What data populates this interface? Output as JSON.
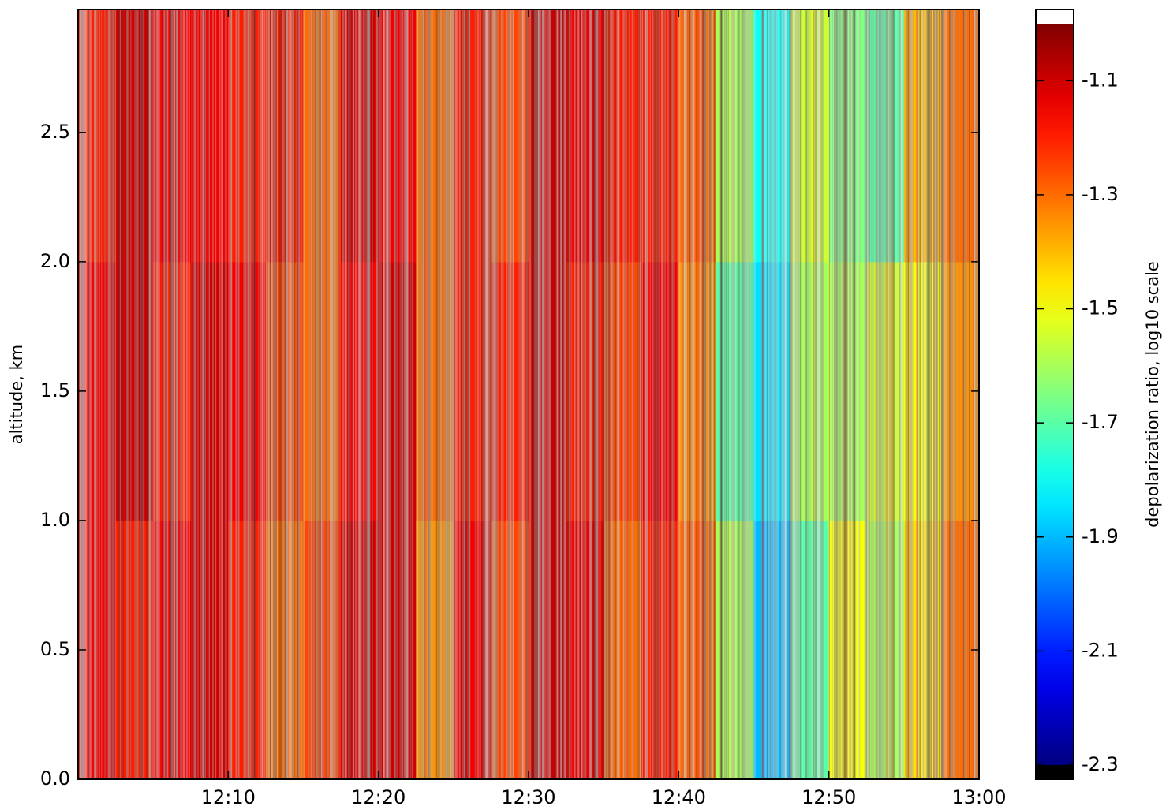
{
  "chart_data": {
    "type": "heatmap",
    "y_label": "altitude, km",
    "colorbar_label": "depolarization ratio, log10 scale",
    "colormap": "jet",
    "x": [
      720,
      722.5,
      725,
      727.5,
      730,
      732.5,
      735,
      737.5,
      740,
      742.5,
      745,
      747.5,
      750,
      752.5,
      755,
      757.5,
      760,
      762.5,
      765,
      767.5,
      770,
      772.5,
      775,
      777.5,
      780
    ],
    "y": [
      0,
      1,
      2,
      2.975
    ],
    "values": [
      [
        -1.15,
        -1.2,
        -1.15,
        -1.1,
        -1.2,
        -1.3,
        -1.25,
        -1.1,
        -1.1,
        -1.35,
        -1.15,
        -1.25,
        -1.1,
        -1.15,
        -1.3,
        -1.2,
        -1.3,
        -1.6,
        -1.9,
        -1.7,
        -1.5,
        -1.6,
        -1.45,
        -1.3
      ],
      [
        -1.15,
        -1.1,
        -1.2,
        -1.1,
        -1.15,
        -1.25,
        -1.3,
        -1.15,
        -1.1,
        -1.3,
        -1.2,
        -1.2,
        -1.1,
        -1.2,
        -1.25,
        -1.15,
        -1.35,
        -1.7,
        -1.85,
        -1.6,
        -1.6,
        -1.55,
        -1.5,
        -1.35
      ],
      [
        -1.2,
        -1.1,
        -1.15,
        -1.15,
        -1.2,
        -1.2,
        -1.3,
        -1.1,
        -1.15,
        -1.3,
        -1.2,
        -1.25,
        -1.1,
        -1.15,
        -1.2,
        -1.2,
        -1.3,
        -1.6,
        -1.8,
        -1.55,
        -1.65,
        -1.7,
        -1.4,
        -1.3
      ]
    ],
    "xlim": [
      720,
      780
    ],
    "xticks": [
      {
        "value": 730,
        "label": "12:10"
      },
      {
        "value": 740,
        "label": "12:20"
      },
      {
        "value": 750,
        "label": "12:30"
      },
      {
        "value": 760,
        "label": "12:40"
      },
      {
        "value": 770,
        "label": "12:50"
      },
      {
        "value": 780,
        "label": "13:00"
      }
    ],
    "ylim": [
      0,
      2.975
    ],
    "yticks": [
      {
        "value": 0,
        "label": "0.0"
      },
      0.5,
      {
        "value": 1,
        "label": "1.0"
      },
      1.5,
      {
        "value": 2,
        "label": "2.0"
      },
      2.5
    ],
    "clim": [
      -2.3,
      -1.0
    ],
    "cticks": [
      -1.1,
      -1.3,
      -1.5,
      -1.7,
      -1.9,
      -2.1,
      -2.3
    ]
  }
}
